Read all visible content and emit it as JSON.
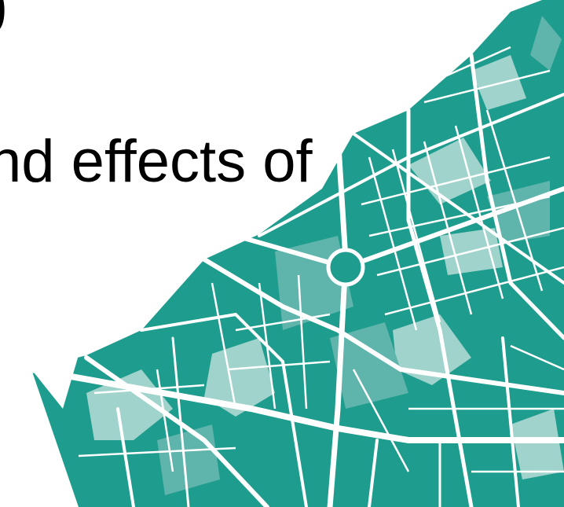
{
  "slide": {
    "title_fragment_top": "p",
    "title_line": "nd effects of"
  },
  "map": {
    "type": "figure-ground city block map",
    "colors": {
      "dark_teal": "#1e9c8e",
      "mid_teal": "#5fb4ab",
      "light_teal": "#9fd3cc",
      "street": "#ffffff"
    }
  }
}
